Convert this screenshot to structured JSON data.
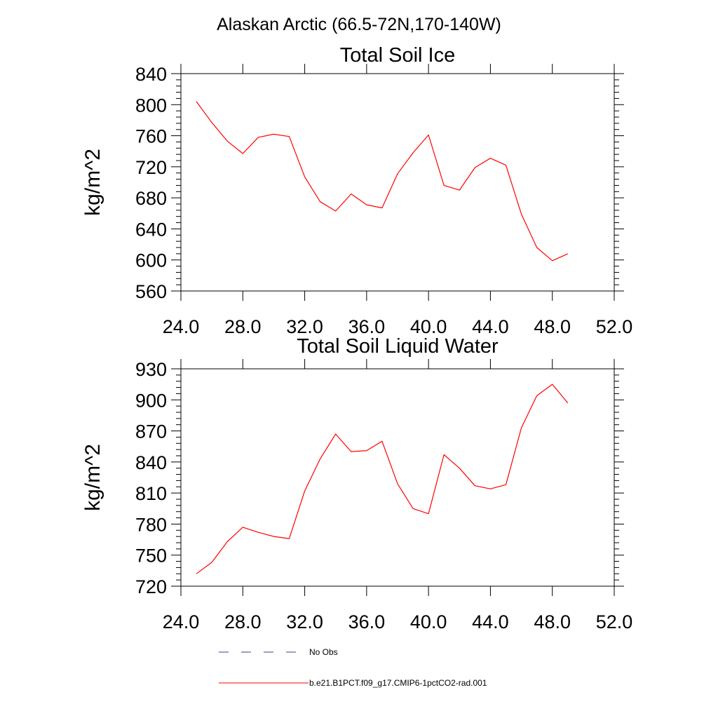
{
  "figure": {
    "suptitle": "Alaskan Arctic (66.5-72N,170-140W)"
  },
  "legend": {
    "items": [
      {
        "label": "No Obs",
        "color": "#3c3c8c",
        "style": "dashed"
      },
      {
        "label": "b.e21.B1PCT.f09_g17.CMIP6-1pctCO2-rad.001",
        "color": "#ff0000",
        "style": "solid"
      }
    ]
  },
  "chart_data": [
    {
      "type": "line",
      "title": "Total Soil Ice",
      "xlabel": "",
      "ylabel": "kg/m^2",
      "xlim": [
        24,
        52
      ],
      "ylim": [
        560,
        840
      ],
      "xticks": [
        24,
        28,
        32,
        36,
        40,
        44,
        48,
        52
      ],
      "xtick_labels": [
        "24.0",
        "28.0",
        "32.0",
        "36.0",
        "40.0",
        "44.0",
        "48.0",
        "52.0"
      ],
      "yticks": [
        560,
        600,
        640,
        680,
        720,
        760,
        800,
        840
      ],
      "ytick_labels": [
        "560",
        "600",
        "640",
        "680",
        "720",
        "760",
        "800",
        "840"
      ],
      "grid": false,
      "series": [
        {
          "name": "b.e21.B1PCT.f09_g17.CMIP6-1pctCO2-rad.001",
          "color": "#ff0000",
          "x": [
            25,
            26,
            27,
            28,
            29,
            30,
            31,
            32,
            33,
            34,
            35,
            36,
            37,
            38,
            39,
            40,
            41,
            42,
            43,
            44,
            45,
            46,
            47,
            48,
            49
          ],
          "y": [
            804,
            777,
            753,
            737,
            758,
            762,
            759,
            707,
            675,
            663,
            685,
            671,
            667,
            711,
            738,
            761,
            696,
            690,
            719,
            731,
            722,
            659,
            616,
            599,
            608
          ]
        }
      ]
    },
    {
      "type": "line",
      "title": "Total Soil Liquid Water",
      "xlabel": "",
      "ylabel": "kg/m^2",
      "xlim": [
        24,
        52
      ],
      "ylim": [
        720,
        930
      ],
      "xticks": [
        24,
        28,
        32,
        36,
        40,
        44,
        48,
        52
      ],
      "xtick_labels": [
        "24.0",
        "28.0",
        "32.0",
        "36.0",
        "40.0",
        "44.0",
        "48.0",
        "52.0"
      ],
      "yticks": [
        720,
        750,
        780,
        810,
        840,
        870,
        900,
        930
      ],
      "ytick_labels": [
        "720",
        "750",
        "780",
        "810",
        "840",
        "870",
        "900",
        "930"
      ],
      "grid": false,
      "series": [
        {
          "name": "b.e21.B1PCT.f09_g17.CMIP6-1pctCO2-rad.001",
          "color": "#ff0000",
          "x": [
            25,
            26,
            27,
            28,
            29,
            30,
            31,
            32,
            33,
            34,
            35,
            36,
            37,
            38,
            39,
            40,
            41,
            42,
            43,
            44,
            45,
            46,
            47,
            48,
            49
          ],
          "y": [
            732,
            743,
            763,
            777,
            772,
            768,
            766,
            812,
            843,
            867,
            850,
            851,
            860,
            819,
            795,
            790,
            847,
            834,
            817,
            814,
            818,
            873,
            904,
            915,
            897
          ]
        }
      ]
    }
  ]
}
